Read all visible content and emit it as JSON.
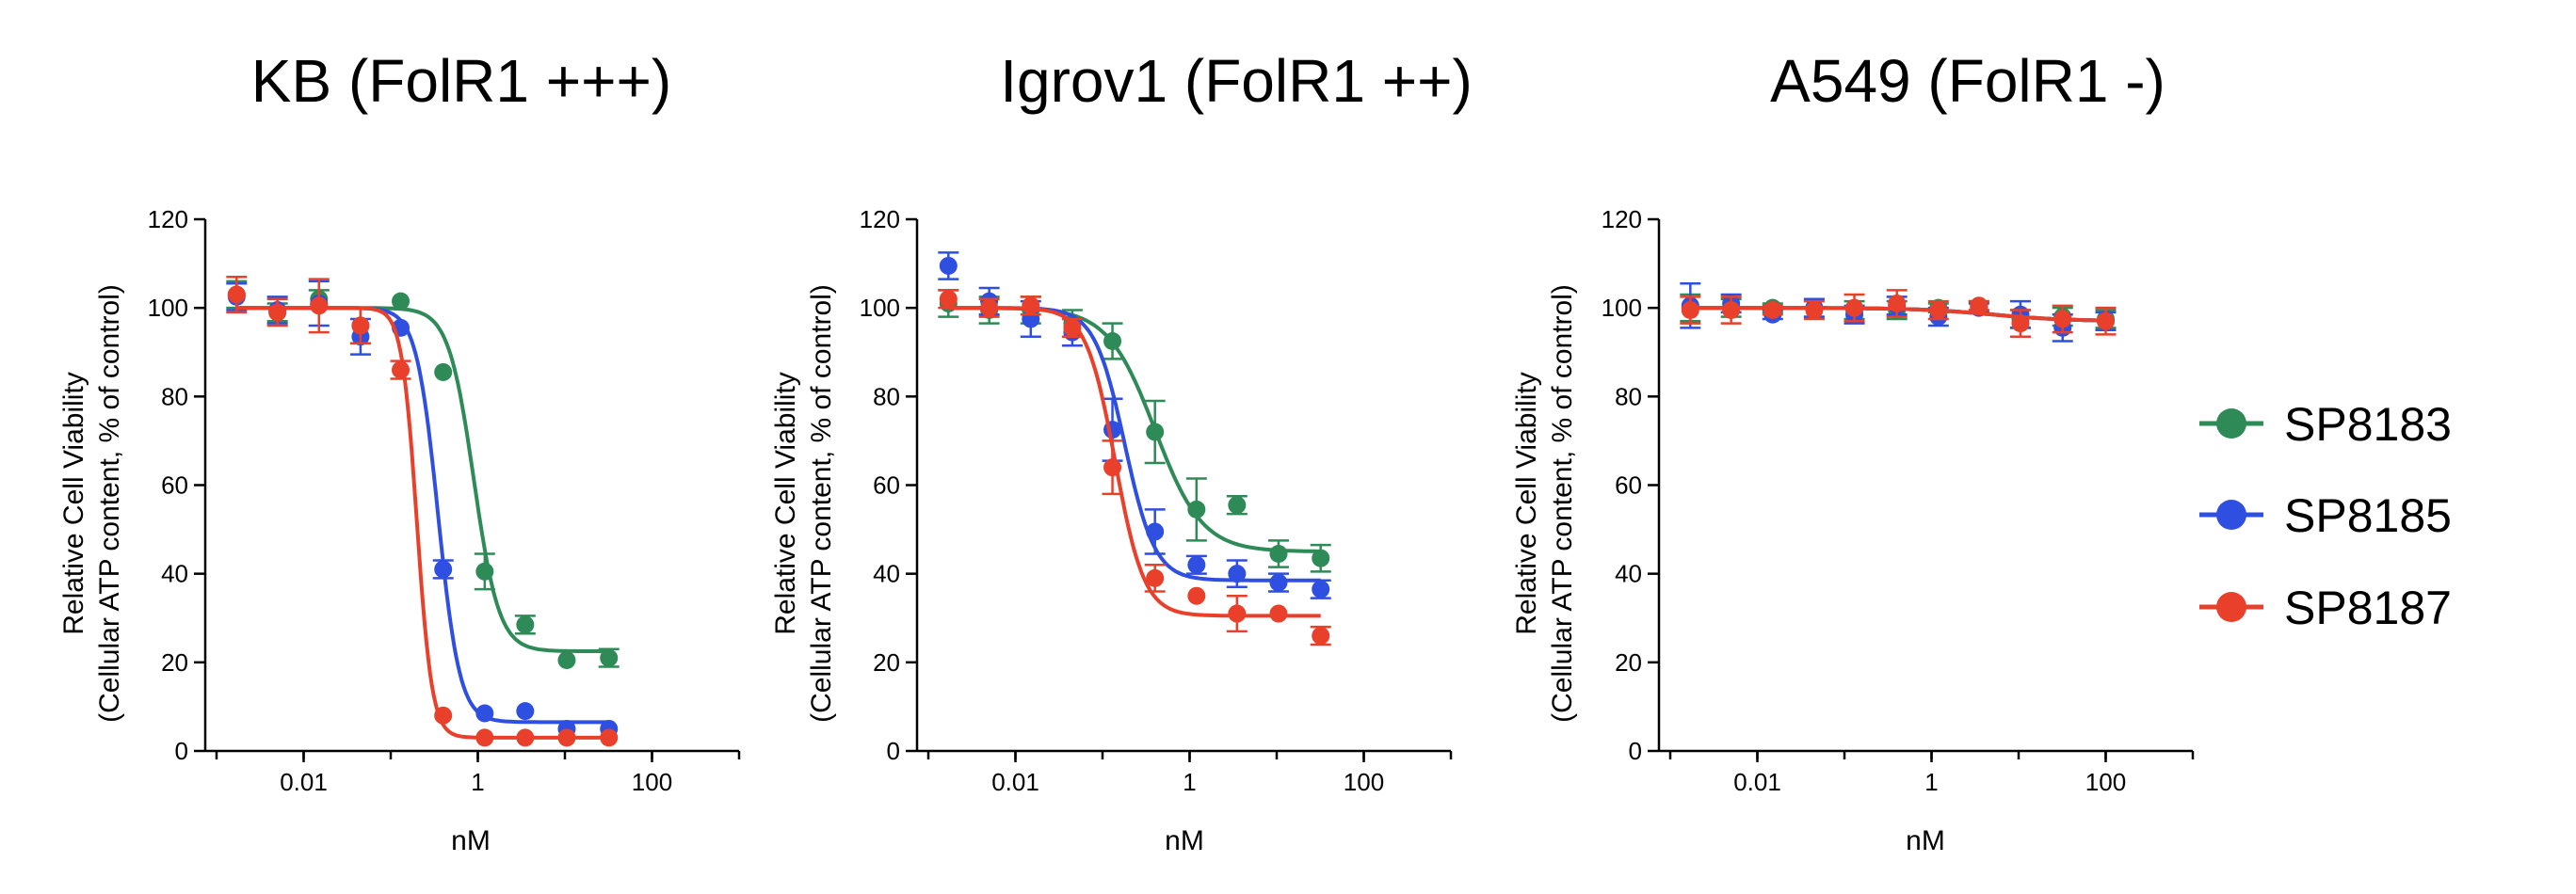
{
  "colors": {
    "SP8183": "#2e8b57",
    "SP8185": "#2f4fe0",
    "SP8187": "#e8402a"
  },
  "legend": {
    "items": [
      "SP8183",
      "SP8185",
      "SP8187"
    ]
  },
  "chart_data": [
    {
      "type": "scatter",
      "title": "KB (FolR1 +++)",
      "xlabel": "nM",
      "ylabel": [
        "Relative Cell Viability",
        "(Cellular ATP content, % of control)"
      ],
      "xscale": "log",
      "xlim": [
        0.001,
        1000
      ],
      "ylim": [
        0,
        120
      ],
      "xticks": [
        0.01,
        1,
        100
      ],
      "xtick_labels": [
        "0.01",
        "1",
        "100"
      ],
      "yticks": [
        0,
        20,
        40,
        60,
        80,
        100,
        120
      ],
      "series": [
        {
          "name": "SP8183",
          "x": [
            0.0017,
            0.005,
            0.015,
            0.045,
            0.13,
            0.4,
            1.2,
            3.5,
            10.5,
            32
          ],
          "y": [
            103,
            99,
            102,
            96,
            101.5,
            85.5,
            40.5,
            28.5,
            20.5,
            21
          ],
          "err": [
            3,
            2,
            2,
            4,
            0,
            0,
            4,
            2,
            0,
            2
          ],
          "fit": {
            "top": 100,
            "bottom": 22.5,
            "ic50": 0.9,
            "hill": 3
          }
        },
        {
          "name": "SP8185",
          "x": [
            0.0017,
            0.005,
            0.015,
            0.045,
            0.13,
            0.4,
            1.2,
            3.5,
            10.5,
            32
          ],
          "y": [
            102.5,
            99.5,
            101,
            93.5,
            95.5,
            41,
            8.5,
            9,
            5,
            5
          ],
          "err": [
            3,
            3,
            5,
            4,
            0,
            2,
            0,
            0,
            0,
            0
          ],
          "fit": {
            "top": 100,
            "bottom": 6.5,
            "ic50": 0.35,
            "hill": 3.5
          }
        },
        {
          "name": "SP8187",
          "x": [
            0.0017,
            0.005,
            0.015,
            0.045,
            0.13,
            0.4,
            1.2,
            3.5,
            10.5,
            32
          ],
          "y": [
            103,
            99,
            100.5,
            96,
            86,
            8,
            3,
            3,
            3,
            3
          ],
          "err": [
            4,
            3,
            6,
            4,
            2,
            0,
            0,
            0,
            0,
            0
          ],
          "fit": {
            "top": 100,
            "bottom": 3,
            "ic50": 0.2,
            "hill": 5
          }
        }
      ]
    },
    {
      "type": "scatter",
      "title": "Igrov1 (FolR1 ++)",
      "xlabel": "nM",
      "ylabel": [
        "Relative Cell Viability",
        "(Cellular ATP content, % of control)"
      ],
      "xscale": "log",
      "xlim": [
        0.001,
        1000
      ],
      "ylim": [
        0,
        120
      ],
      "xticks": [
        0.01,
        1,
        100
      ],
      "xtick_labels": [
        "0.01",
        "1",
        "100"
      ],
      "yticks": [
        0,
        20,
        40,
        60,
        80,
        100,
        120
      ],
      "series": [
        {
          "name": "SP8183",
          "x": [
            0.0017,
            0.005,
            0.015,
            0.045,
            0.13,
            0.4,
            1.2,
            3.5,
            10.5,
            32
          ],
          "y": [
            101,
            99.5,
            99.5,
            96.5,
            92.5,
            72,
            54.5,
            55.5,
            44.5,
            43.5
          ],
          "err": [
            3,
            3,
            3,
            3,
            4,
            7,
            7,
            2,
            3,
            3
          ],
          "fit": {
            "top": 100,
            "bottom": 45,
            "ic50": 0.4,
            "hill": 1.6
          }
        },
        {
          "name": "SP8185",
          "x": [
            0.0017,
            0.005,
            0.015,
            0.045,
            0.13,
            0.4,
            1.2,
            3.5,
            10.5,
            32
          ],
          "y": [
            109.5,
            101.5,
            97.5,
            94.5,
            72.5,
            49.5,
            42,
            40,
            38,
            36.5
          ],
          "err": [
            3,
            3,
            4,
            3,
            7,
            5,
            2,
            3,
            2,
            2
          ],
          "fit": {
            "top": 100,
            "bottom": 38.5,
            "ic50": 0.18,
            "hill": 2.5
          }
        },
        {
          "name": "SP8187",
          "x": [
            0.0017,
            0.005,
            0.015,
            0.045,
            0.13,
            0.4,
            1.2,
            3.5,
            10.5,
            32
          ],
          "y": [
            102,
            100,
            100.5,
            95.5,
            64,
            39,
            35,
            31,
            31,
            26
          ],
          "err": [
            2,
            2,
            2,
            2,
            6,
            3,
            0,
            4,
            0,
            2
          ],
          "fit": {
            "top": 100,
            "bottom": 30.5,
            "ic50": 0.14,
            "hill": 2.6
          }
        }
      ]
    },
    {
      "type": "scatter",
      "title": "A549 (FolR1 -)",
      "xlabel": "nM",
      "ylabel": [
        "Relative Cell Viability",
        "(Cellular ATP content, % of control)"
      ],
      "xscale": "log",
      "xlim": [
        0.001,
        1000
      ],
      "ylim": [
        0,
        120
      ],
      "xticks": [
        0.01,
        1,
        100
      ],
      "xtick_labels": [
        "0.01",
        "1",
        "100"
      ],
      "yticks": [
        0,
        20,
        40,
        60,
        80,
        100,
        120
      ],
      "series": [
        {
          "name": "SP8183",
          "x": [
            0.0017,
            0.005,
            0.015,
            0.045,
            0.13,
            0.4,
            1.2,
            3.5,
            10.5,
            32,
            100
          ],
          "y": [
            100,
            100,
            100,
            100,
            99.5,
            99.5,
            100,
            100.5,
            97.5,
            98,
            97.5
          ],
          "err": [
            3,
            2,
            1,
            2,
            2,
            2,
            1,
            1,
            2,
            2,
            2
          ],
          "fit": {
            "top": 100,
            "bottom": 97,
            "ic50": 5,
            "hill": 1
          }
        },
        {
          "name": "SP8185",
          "x": [
            0.0017,
            0.005,
            0.015,
            0.045,
            0.13,
            0.4,
            1.2,
            3.5,
            10.5,
            32,
            100
          ],
          "y": [
            100.5,
            101,
            98.5,
            100,
            98.5,
            100.5,
            98,
            100,
            98.5,
            95.5,
            97
          ],
          "err": [
            5,
            2,
            1,
            2,
            2,
            2,
            2,
            1,
            3,
            3,
            2
          ],
          "fit": {
            "top": 100,
            "bottom": 97,
            "ic50": 5,
            "hill": 1
          }
        },
        {
          "name": "SP8187",
          "x": [
            0.0017,
            0.005,
            0.015,
            0.045,
            0.13,
            0.4,
            1.2,
            3.5,
            10.5,
            32,
            100
          ],
          "y": [
            99.5,
            99.5,
            99.5,
            99.5,
            100,
            101,
            99.5,
            100.5,
            96.5,
            97.5,
            97
          ],
          "err": [
            3,
            3,
            1,
            2,
            3,
            3,
            2,
            1,
            3,
            3,
            3
          ],
          "fit": {
            "top": 100,
            "bottom": 97,
            "ic50": 5,
            "hill": 1
          }
        }
      ]
    }
  ]
}
